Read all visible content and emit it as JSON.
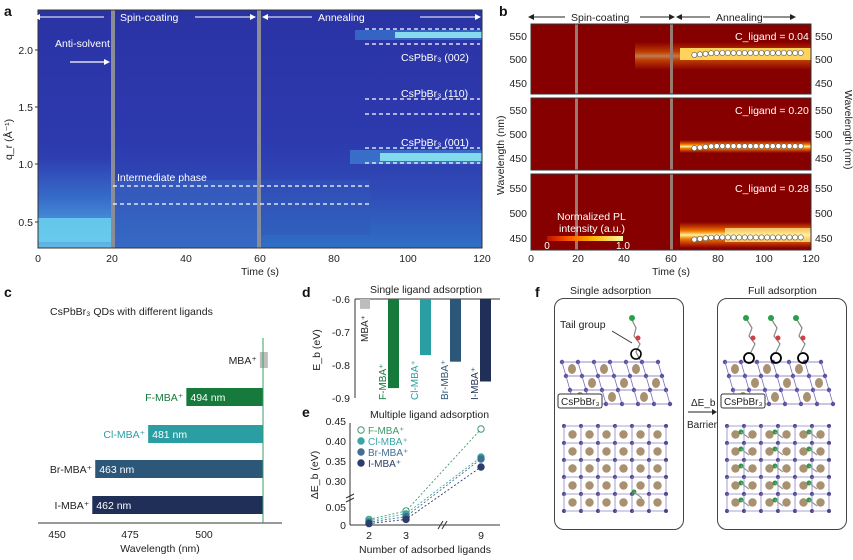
{
  "panel_a": {
    "label": "a",
    "phases": {
      "left": "Spin-coating",
      "right": "Annealing"
    },
    "annotations": {
      "antisolvent": "Anti-solvent",
      "intermediate": "Intermediate phase",
      "p002": "CsPbBr₃ (002)",
      "p110": "CsPbBr₃ (110)",
      "p001": "CsPbBr₃ (001)"
    },
    "ylabel": "q_r (Å⁻¹)",
    "xlabel": "Time (s)",
    "xticks": [
      "0",
      "20",
      "40",
      "60",
      "80",
      "100",
      "120"
    ],
    "yticks": [
      "0.5",
      "1.0",
      "1.5",
      "2.0"
    ]
  },
  "panel_b": {
    "label": "b",
    "phases": {
      "left": "Spin-coating",
      "right": "Annealing"
    },
    "ylabel": "Wavelength (nm)",
    "xlabel": "Time (s)",
    "xticks": [
      "0",
      "20",
      "40",
      "60",
      "80",
      "100",
      "120"
    ],
    "yticks": [
      "450",
      "500",
      "550"
    ],
    "rows": [
      {
        "conc": "C_ligand = 0.04 M",
        "peak_nm": 515
      },
      {
        "conc": "C_ligand = 0.20 M",
        "peak_nm": 478
      },
      {
        "conc": "C_ligand = 0.28 M",
        "peak_nm": 454
      }
    ],
    "colorbar": {
      "title1": "Normalized PL",
      "title2": "intensity (a.u.)",
      "min": "0",
      "max": "1.0"
    }
  },
  "chart_data": [
    {
      "type": "bar",
      "panel": "c",
      "title": "CsPbBr₃ QDs with different ligands",
      "xlabel": "Wavelength (nm)",
      "xticks": [
        "450",
        "475",
        "500"
      ],
      "categories": [
        "MBA⁺",
        "F-MBA⁺",
        "Cl-MBA⁺",
        "Br-MBA⁺",
        "I-MBA⁺"
      ],
      "values": [
        519,
        494,
        481,
        463,
        462
      ],
      "value_labels": [
        "",
        "494 nm",
        "481 nm",
        "463 nm",
        "462 nm"
      ],
      "colors": [
        "#bdbdbd",
        "#157a3c",
        "#2a9ea3",
        "#2d5779",
        "#1f2f57"
      ]
    },
    {
      "type": "bar",
      "panel": "d",
      "title": "Single ligand adsorption",
      "ylabel": "E_b (eV)",
      "yticks": [
        "-0.6",
        "-0.7",
        "-0.8",
        "-0.9"
      ],
      "categories": [
        "MBA⁺",
        "F-MBA⁺",
        "Cl-MBA⁺",
        "Br-MBA⁺",
        "I-MBA⁺"
      ],
      "values": [
        -0.63,
        -0.87,
        -0.77,
        -0.79,
        -0.85
      ],
      "ylim": [
        -0.9,
        -0.6
      ],
      "colors": [
        "#bdbdbd",
        "#157a3c",
        "#2a9ea3",
        "#2d5779",
        "#1f2f57"
      ]
    },
    {
      "type": "line",
      "panel": "e",
      "title": "Multiple ligand adsorption",
      "ylabel": "ΔE_b (eV)",
      "xlabel": "Number of adsorbed ligands",
      "x": [
        "2",
        "3",
        "9"
      ],
      "yticks": [
        "0",
        "0.05",
        "0.30",
        "0.35",
        "0.40",
        "0.45"
      ],
      "series": [
        {
          "name": "F-MBA⁺",
          "values": [
            0.02,
            0.05,
            0.44
          ],
          "color": "#3e9b6a"
        },
        {
          "name": "Cl-MBA⁺",
          "values": [
            0.015,
            0.04,
            0.37
          ],
          "color": "#3aa5a5"
        },
        {
          "name": "Br-MBA⁺",
          "values": [
            0.01,
            0.03,
            0.365
          ],
          "color": "#3f6f93"
        },
        {
          "name": "I-MBA⁺",
          "values": [
            0.005,
            0.02,
            0.345
          ],
          "color": "#2c3d6a"
        }
      ]
    }
  ],
  "panel_f": {
    "label": "f",
    "left_title": "Single adsorption",
    "right_title": "Full adsorption",
    "tail_group": "Tail group",
    "crystal_label": "CsPbBr₃",
    "arrow_top": "ΔE_b",
    "arrow_bottom": "Barrier"
  },
  "labels": {
    "c": "c",
    "d": "d",
    "e": "e"
  }
}
